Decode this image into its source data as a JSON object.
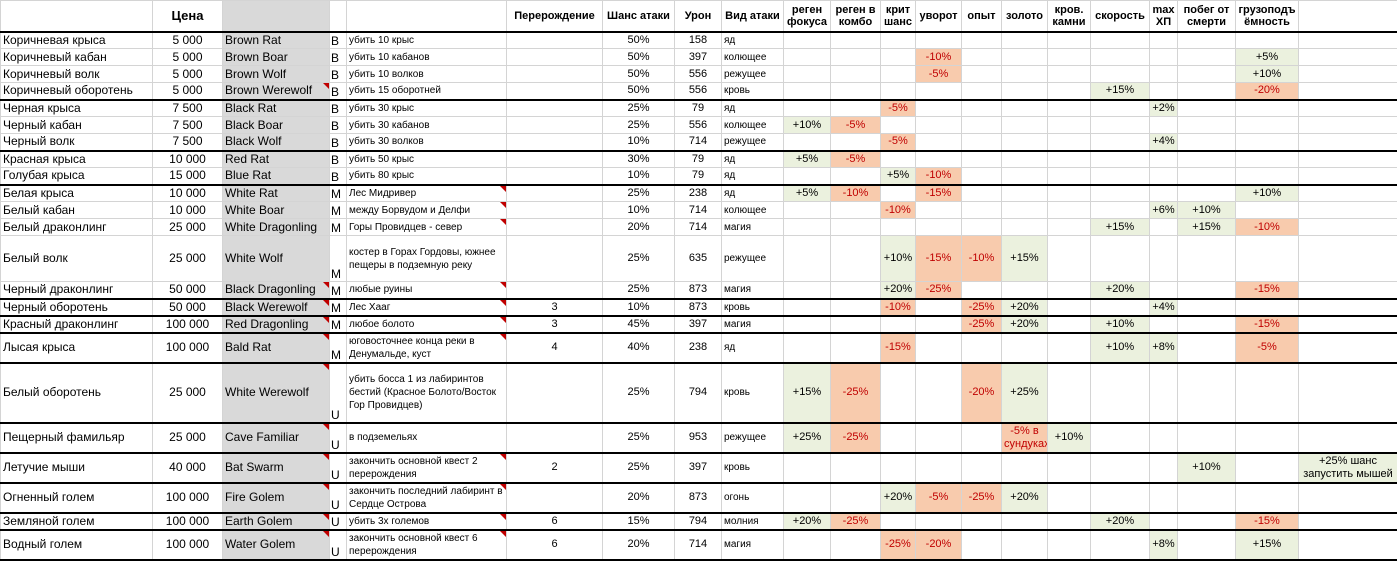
{
  "headers": {
    "name": "",
    "price": "Цена",
    "en": "",
    "rarity": "",
    "condition": "",
    "rebirth": "Перерождение",
    "attack_chance": "Шанс атаки",
    "damage": "Урон",
    "attack_type": "Вид атаки",
    "focus_regen": "реген фокуса",
    "combo_regen": "реген в комбо",
    "crit": "крит шанс",
    "dodge": "уворот",
    "exp": "опыт",
    "gold": "золото",
    "blood_stones": "кров. камни",
    "speed": "скорость",
    "max_hp": "max ХП",
    "death_escape": "побег от смерти",
    "capacity": "грузоподъ ёмность",
    "extra": ""
  },
  "rows": [
    {
      "name": "Коричневая крыса",
      "price": "5 000",
      "en": "Brown Rat",
      "rarity": "B",
      "condition": "убить 10 крыс",
      "rebirth": "",
      "attack_chance": "50%",
      "damage": "158",
      "attack_type": "яд",
      "focus_regen": "",
      "combo_regen": "",
      "crit": "",
      "dodge": "",
      "exp": "",
      "gold": "",
      "blood_stones": "",
      "speed": "",
      "max_hp": "",
      "death_escape": "",
      "capacity": "",
      "extra": ""
    },
    {
      "name": "Коричневый кабан",
      "price": "5 000",
      "en": "Brown Boar",
      "rarity": "B",
      "condition": "убить 10 кабанов",
      "rebirth": "",
      "attack_chance": "50%",
      "damage": "397",
      "attack_type": "колющее",
      "focus_regen": "",
      "combo_regen": "",
      "crit": "",
      "dodge": "-10%",
      "exp": "",
      "gold": "",
      "blood_stones": "",
      "speed": "",
      "max_hp": "",
      "death_escape": "",
      "capacity": "+5%",
      "extra": ""
    },
    {
      "name": "Коричневый волк",
      "price": "5 000",
      "en": "Brown Wolf",
      "rarity": "B",
      "condition": "убить 10 волков",
      "rebirth": "",
      "attack_chance": "50%",
      "damage": "556",
      "attack_type": "режущее",
      "focus_regen": "",
      "combo_regen": "",
      "crit": "",
      "dodge": "-5%",
      "exp": "",
      "gold": "",
      "blood_stones": "",
      "speed": "",
      "max_hp": "",
      "death_escape": "",
      "capacity": "+10%",
      "extra": ""
    },
    {
      "name": "Коричневый оборотень",
      "price": "5 000",
      "en": "Brown Werewolf",
      "rarity": "B",
      "condition": "убить 15 оборотней",
      "rebirth": "",
      "attack_chance": "50%",
      "damage": "556",
      "attack_type": "кровь",
      "focus_regen": "",
      "combo_regen": "",
      "crit": "",
      "dodge": "",
      "exp": "",
      "gold": "",
      "blood_stones": "",
      "speed": "+15%",
      "max_hp": "",
      "death_escape": "",
      "capacity": "-20%",
      "extra": ""
    },
    {
      "name": "Черная крыса",
      "price": "7 500",
      "en": "Black Rat",
      "rarity": "B",
      "condition": "убить 30 крыс",
      "rebirth": "",
      "attack_chance": "25%",
      "damage": "79",
      "attack_type": "яд",
      "focus_regen": "",
      "combo_regen": "",
      "crit": "-5%",
      "dodge": "",
      "exp": "",
      "gold": "",
      "blood_stones": "",
      "speed": "",
      "max_hp": "+2%",
      "death_escape": "",
      "capacity": "",
      "extra": ""
    },
    {
      "name": "Черный кабан",
      "price": "7 500",
      "en": "Black Boar",
      "rarity": "B",
      "condition": "убить 30 кабанов",
      "rebirth": "",
      "attack_chance": "25%",
      "damage": "556",
      "attack_type": "колющее",
      "focus_regen": "+10%",
      "combo_regen": "-5%",
      "crit": "",
      "dodge": "",
      "exp": "",
      "gold": "",
      "blood_stones": "",
      "speed": "",
      "max_hp": "",
      "death_escape": "",
      "capacity": "",
      "extra": ""
    },
    {
      "name": "Черный волк",
      "price": "7 500",
      "en": "Black Wolf",
      "rarity": "B",
      "condition": "убить 30 волков",
      "rebirth": "",
      "attack_chance": "10%",
      "damage": "714",
      "attack_type": "режущее",
      "focus_regen": "",
      "combo_regen": "",
      "crit": "-5%",
      "dodge": "",
      "exp": "",
      "gold": "",
      "blood_stones": "",
      "speed": "",
      "max_hp": "+4%",
      "death_escape": "",
      "capacity": "",
      "extra": ""
    },
    {
      "name": "Красная крыса",
      "price": "10 000",
      "en": "Red Rat",
      "rarity": "B",
      "condition": "убить 50 крыс",
      "rebirth": "",
      "attack_chance": "30%",
      "damage": "79",
      "attack_type": "яд",
      "focus_regen": "+5%",
      "combo_regen": "-5%",
      "crit": "",
      "dodge": "",
      "exp": "",
      "gold": "",
      "blood_stones": "",
      "speed": "",
      "max_hp": "",
      "death_escape": "",
      "capacity": "",
      "extra": ""
    },
    {
      "name": "Голубая крыса",
      "price": "15 000",
      "en": "Blue Rat",
      "rarity": "B",
      "condition": "убить 80 крыс",
      "rebirth": "",
      "attack_chance": "10%",
      "damage": "79",
      "attack_type": "яд",
      "focus_regen": "",
      "combo_regen": "",
      "crit": "+5%",
      "dodge": "-10%",
      "exp": "",
      "gold": "",
      "blood_stones": "",
      "speed": "",
      "max_hp": "",
      "death_escape": "",
      "capacity": "",
      "extra": ""
    },
    {
      "name": "Белая крыса",
      "price": "10 000",
      "en": "White Rat",
      "rarity": "M",
      "condition": "Лес Мидривер",
      "rebirth": "",
      "attack_chance": "25%",
      "damage": "238",
      "attack_type": "яд",
      "focus_regen": "+5%",
      "combo_regen": "-10%",
      "crit": "",
      "dodge": "-15%",
      "exp": "",
      "gold": "",
      "blood_stones": "",
      "speed": "",
      "max_hp": "",
      "death_escape": "",
      "capacity": "+10%",
      "extra": ""
    },
    {
      "name": "Белый кабан",
      "price": "10 000",
      "en": "White Boar",
      "rarity": "M",
      "condition": "между Борвудом и Делфи",
      "rebirth": "",
      "attack_chance": "10%",
      "damage": "714",
      "attack_type": "колющее",
      "focus_regen": "",
      "combo_regen": "",
      "crit": "-10%",
      "dodge": "",
      "exp": "",
      "gold": "",
      "blood_stones": "",
      "speed": "",
      "max_hp": "+6%",
      "death_escape": "+10%",
      "capacity": "",
      "extra": ""
    },
    {
      "name": "Белый драконлинг",
      "price": "25 000",
      "en": "White Dragonling",
      "rarity": "M",
      "condition": "Горы Провидцев - север",
      "rebirth": "",
      "attack_chance": "20%",
      "damage": "714",
      "attack_type": "магия",
      "focus_regen": "",
      "combo_regen": "",
      "crit": "",
      "dodge": "",
      "exp": "",
      "gold": "",
      "blood_stones": "",
      "speed": "+15%",
      "max_hp": "",
      "death_escape": "+15%",
      "capacity": "-10%",
      "extra": ""
    },
    {
      "name": "Белый волк",
      "price": "25 000",
      "en": "White Wolf",
      "rarity": "M",
      "condition": "костер в Горах Гордовы, южнее пещеры в подземную реку",
      "rebirth": "",
      "attack_chance": "25%",
      "damage": "635",
      "attack_type": "режущее",
      "focus_regen": "",
      "combo_regen": "",
      "crit": "+10%",
      "dodge": "-15%",
      "exp": "-10%",
      "gold": "+15%",
      "blood_stones": "",
      "speed": "",
      "max_hp": "",
      "death_escape": "",
      "capacity": "",
      "extra": ""
    },
    {
      "name": "Черный драконлинг",
      "price": "50 000",
      "en": "Black Dragonling",
      "rarity": "M",
      "condition": "любые руины",
      "rebirth": "",
      "attack_chance": "25%",
      "damage": "873",
      "attack_type": "магия",
      "focus_regen": "",
      "combo_regen": "",
      "crit": "+20%",
      "dodge": "-25%",
      "exp": "",
      "gold": "",
      "blood_stones": "",
      "speed": "+20%",
      "max_hp": "",
      "death_escape": "",
      "capacity": "-15%",
      "extra": ""
    },
    {
      "name": "Черный оборотень",
      "price": "50 000",
      "en": "Black Werewolf",
      "rarity": "M",
      "condition": "Лес Хааг",
      "rebirth": "3",
      "attack_chance": "10%",
      "damage": "873",
      "attack_type": "кровь",
      "focus_regen": "",
      "combo_regen": "",
      "crit": "-10%",
      "dodge": "",
      "exp": "-25%",
      "gold": "+20%",
      "blood_stones": "",
      "speed": "",
      "max_hp": "+4%",
      "death_escape": "",
      "capacity": "",
      "extra": ""
    },
    {
      "name": "Красный драконлинг",
      "price": "100 000",
      "en": "Red Dragonling",
      "rarity": "M",
      "condition": "любое болото",
      "rebirth": "3",
      "attack_chance": "45%",
      "damage": "397",
      "attack_type": "магия",
      "focus_regen": "",
      "combo_regen": "",
      "crit": "",
      "dodge": "",
      "exp": "-25%",
      "gold": "+20%",
      "blood_stones": "",
      "speed": "+10%",
      "max_hp": "",
      "death_escape": "",
      "capacity": "-15%",
      "extra": ""
    },
    {
      "name": "Лысая крыса",
      "price": "100 000",
      "en": "Bald Rat",
      "rarity": "M",
      "condition": "юговосточнее конца реки в Денумальде, куст",
      "rebirth": "4",
      "attack_chance": "40%",
      "damage": "238",
      "attack_type": "яд",
      "focus_regen": "",
      "combo_regen": "",
      "crit": "-15%",
      "dodge": "",
      "exp": "",
      "gold": "",
      "blood_stones": "",
      "speed": "+10%",
      "max_hp": "+8%",
      "death_escape": "",
      "capacity": "-5%",
      "extra": ""
    },
    {
      "name": "Белый оборотень",
      "price": "25 000",
      "en": "White Werewolf",
      "rarity": "U",
      "condition": "убить босса 1 из лабиринтов бестий (Красное Болото/Восток Гор Провидцев)",
      "rebirth": "",
      "attack_chance": "25%",
      "damage": "794",
      "attack_type": "кровь",
      "focus_regen": "+15%",
      "combo_regen": "-25%",
      "crit": "",
      "dodge": "",
      "exp": "-20%",
      "gold": "+25%",
      "blood_stones": "",
      "speed": "",
      "max_hp": "",
      "death_escape": "",
      "capacity": "",
      "extra": ""
    },
    {
      "name": "Пещерный фамильяр",
      "price": "25 000",
      "en": "Cave Familiar",
      "rarity": "U",
      "condition": "в подземельях",
      "rebirth": "",
      "attack_chance": "25%",
      "damage": "953",
      "attack_type": "режущее",
      "focus_regen": "+25%",
      "combo_regen": "-25%",
      "crit": "",
      "dodge": "",
      "exp": "",
      "gold": "-5% в сундуках",
      "blood_stones": "+10%",
      "speed": "",
      "max_hp": "",
      "death_escape": "",
      "capacity": "",
      "extra": ""
    },
    {
      "name": "Летучие мыши",
      "price": "40 000",
      "en": "Bat Swarm",
      "rarity": "U",
      "condition": "закончить основной квест 2 перерождения",
      "rebirth": "2",
      "attack_chance": "25%",
      "damage": "397",
      "attack_type": "кровь",
      "focus_regen": "",
      "combo_regen": "",
      "crit": "",
      "dodge": "",
      "exp": "",
      "gold": "",
      "blood_stones": "",
      "speed": "",
      "max_hp": "",
      "death_escape": "+10%",
      "capacity": "",
      "extra": "+25% шанс запустить мышей"
    },
    {
      "name": "Огненный голем",
      "price": "100 000",
      "en": "Fire Golem",
      "rarity": "U",
      "condition": "закончить последний лабиринт в Сердце Острова",
      "rebirth": "",
      "attack_chance": "20%",
      "damage": "873",
      "attack_type": "огонь",
      "focus_regen": "",
      "combo_regen": "",
      "crit": "+20%",
      "dodge": "-5%",
      "exp": "-25%",
      "gold": "+20%",
      "blood_stones": "",
      "speed": "",
      "max_hp": "",
      "death_escape": "",
      "capacity": "",
      "extra": ""
    },
    {
      "name": "Земляной голем",
      "price": "100 000",
      "en": "Earth Golem",
      "rarity": "U",
      "condition": "убить 3х големов",
      "rebirth": "6",
      "attack_chance": "15%",
      "damage": "794",
      "attack_type": "молния",
      "focus_regen": "+20%",
      "combo_regen": "-25%",
      "crit": "",
      "dodge": "",
      "exp": "",
      "gold": "",
      "blood_stones": "",
      "speed": "+20%",
      "max_hp": "",
      "death_escape": "",
      "capacity": "-15%",
      "extra": ""
    },
    {
      "name": "Водный голем",
      "price": "100 000",
      "en": "Water Golem",
      "rarity": "U",
      "condition": "закончить основной квест 6 перерождения",
      "rebirth": "6",
      "attack_chance": "20%",
      "damage": "714",
      "attack_type": "магия",
      "focus_regen": "",
      "combo_regen": "",
      "crit": "-25%",
      "dodge": "-20%",
      "exp": "",
      "gold": "",
      "blood_stones": "",
      "speed": "",
      "max_hp": "+8%",
      "death_escape": "",
      "capacity": "+15%",
      "extra": ""
    }
  ],
  "colors": {
    "positive_fill": "#ebf1de",
    "negative_fill": "#f8cbad",
    "negative_text": "#c00000",
    "name_column_fill": "#d9d9d9",
    "comment_marker": "#c00000"
  }
}
